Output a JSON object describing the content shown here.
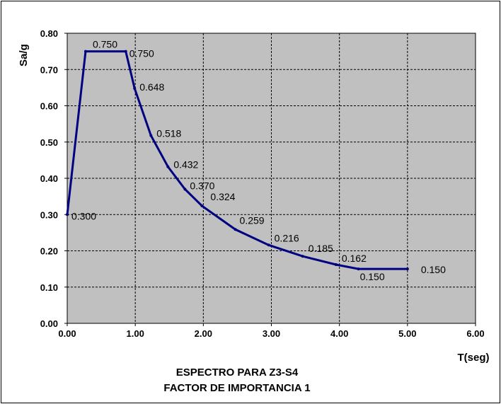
{
  "chart_data": {
    "type": "line",
    "title_lines": [
      "ESPECTRO  PARA  Z3-S4",
      "FACTOR DE IMPORTANCIA 1"
    ],
    "xlabel": "T(seg)",
    "ylabel": "Sa/g",
    "xlim": [
      0,
      6
    ],
    "ylim": [
      0,
      0.8
    ],
    "x_ticks": [
      "0.00",
      "1.00",
      "2.00",
      "3.00",
      "4.00",
      "5.00",
      "6.00"
    ],
    "y_ticks": [
      "0.00",
      "0.10",
      "0.20",
      "0.30",
      "0.40",
      "0.50",
      "0.60",
      "0.70",
      "0.80"
    ],
    "grid": true,
    "colors": {
      "plot_bg": "#c0c0c0",
      "line": "#000080",
      "grid": "#000000"
    },
    "series": [
      {
        "x": [
          0,
          0.27,
          0.86,
          0.99,
          1.23,
          1.48,
          1.73,
          1.98,
          2.47,
          2.96,
          3.46,
          3.95,
          4.28,
          5.0
        ],
        "y": [
          0.3,
          0.75,
          0.75,
          0.648,
          0.518,
          0.432,
          0.37,
          0.324,
          0.259,
          0.216,
          0.185,
          0.162,
          0.15,
          0.15
        ],
        "labels": [
          "0.300",
          "0.750",
          "0.750",
          "0.648",
          "0.518",
          "0.432",
          "0.370",
          "0.324",
          "0.259",
          "0.216",
          "0.185",
          "0.162",
          "0.150",
          "0.150"
        ]
      }
    ]
  }
}
